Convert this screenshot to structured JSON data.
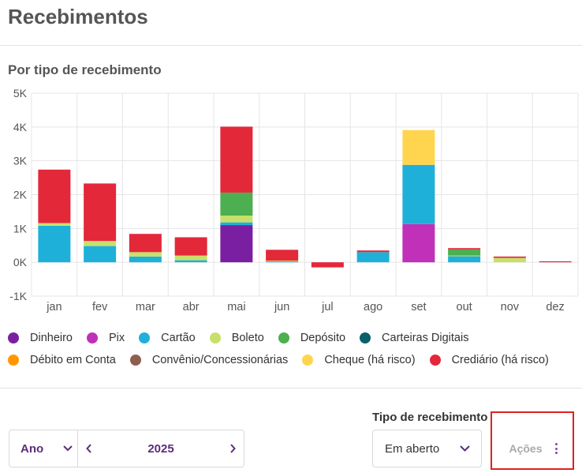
{
  "page": {
    "title": "Recebimentos",
    "section_title": "Por tipo de recebimento"
  },
  "colors": {
    "Dinheiro": "#7b1fa2",
    "Pix": "#c030b8",
    "Cartão": "#1fb0d9",
    "Boleto": "#c8e06a",
    "Depósito": "#4caf50",
    "Carteiras Digitais": "#0b5e6b",
    "Débito em Conta": "#ff9800",
    "Convênio/Concessionárias": "#8d5f4f",
    "Cheque (há risco)": "#ffd54f",
    "Crediário (há risco)": "#e3283a"
  },
  "legend": [
    "Dinheiro",
    "Pix",
    "Cartão",
    "Boleto",
    "Depósito",
    "Carteiras Digitais",
    "Débito em Conta",
    "Convênio/Concessionárias",
    "Cheque (há risco)",
    "Crediário (há risco)"
  ],
  "chart_data": {
    "type": "bar",
    "stacked": true,
    "title": "Por tipo de recebimento",
    "categories": [
      "jan",
      "fev",
      "mar",
      "abr",
      "mai",
      "jun",
      "jul",
      "ago",
      "set",
      "out",
      "nov",
      "dez"
    ],
    "y_ticks": [
      "5K",
      "4K",
      "3K",
      "2K",
      "1K",
      "0K",
      "-1K"
    ],
    "ylim": [
      -1000,
      5000
    ],
    "series": [
      {
        "name": "Dinheiro",
        "values": [
          0,
          0,
          0,
          0,
          1100,
          0,
          0,
          0,
          0,
          0,
          0,
          0
        ]
      },
      {
        "name": "Pix",
        "values": [
          0,
          0,
          0,
          0,
          0,
          0,
          0,
          0,
          1130,
          0,
          0,
          0
        ]
      },
      {
        "name": "Cartão",
        "values": [
          1080,
          480,
          170,
          60,
          80,
          40,
          0,
          300,
          1750,
          180,
          0,
          0
        ]
      },
      {
        "name": "Boleto",
        "values": [
          80,
          150,
          130,
          140,
          200,
          10,
          0,
          0,
          0,
          20,
          130,
          0
        ]
      },
      {
        "name": "Depósito",
        "values": [
          0,
          0,
          0,
          0,
          680,
          0,
          0,
          0,
          0,
          180,
          0,
          0
        ]
      },
      {
        "name": "Carteiras Digitais",
        "values": [
          0,
          0,
          0,
          0,
          0,
          0,
          0,
          0,
          0,
          0,
          0,
          0
        ]
      },
      {
        "name": "Débito em Conta",
        "values": [
          0,
          0,
          0,
          0,
          0,
          0,
          0,
          0,
          0,
          0,
          0,
          0
        ]
      },
      {
        "name": "Convênio/Concessionárias",
        "values": [
          0,
          0,
          0,
          0,
          0,
          0,
          0,
          0,
          0,
          0,
          0,
          0
        ]
      },
      {
        "name": "Cheque (há risco)",
        "values": [
          0,
          0,
          0,
          0,
          0,
          0,
          0,
          0,
          1030,
          0,
          0,
          0
        ]
      },
      {
        "name": "Crediário (há risco)",
        "values": [
          1580,
          1700,
          540,
          540,
          1950,
          320,
          -150,
          50,
          0,
          40,
          40,
          30
        ]
      }
    ]
  },
  "filters": {
    "period": "Ano",
    "year": "2025",
    "type_label": "Tipo de recebimento",
    "type_value": "Em aberto",
    "actions_label": "Ações"
  }
}
